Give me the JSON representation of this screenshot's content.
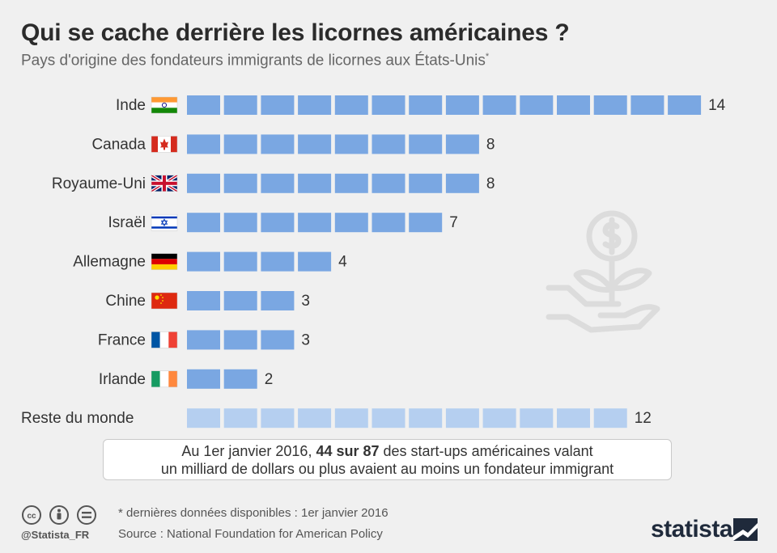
{
  "header": {
    "title": "Qui se cache derrière les licornes américaines ?",
    "subtitle": "Pays d'origine des fondateurs immigrants de licornes aux États-Unis",
    "subtitle_mark": "*"
  },
  "chart_data": {
    "type": "bar",
    "orientation": "horizontal",
    "categories": [
      "Inde",
      "Canada",
      "Royaume-Uni",
      "Israël",
      "Allemagne",
      "Chine",
      "France",
      "Irlande",
      "Reste du monde"
    ],
    "values": [
      14,
      8,
      8,
      7,
      4,
      3,
      3,
      2,
      12
    ],
    "flags": [
      "india",
      "canada",
      "uk",
      "israel",
      "germany",
      "china",
      "france",
      "ireland",
      ""
    ],
    "colors": {
      "country_bar": "#7aa7e2",
      "rest_bar": "#b5cff0"
    }
  },
  "note": {
    "line1_pre": "Au 1er janvier 2016, ",
    "line1_bold": "44 sur 87",
    "line1_post": " des start-ups américaines valant",
    "line2": "un milliard de dollars ou plus avaient au moins un fondateur immigrant"
  },
  "footer": {
    "note": "* dernières données disponibles : 1er janvier 2016",
    "source": "Source : National Foundation for American Policy",
    "handle": "@Statista_FR",
    "logo": "statista"
  }
}
